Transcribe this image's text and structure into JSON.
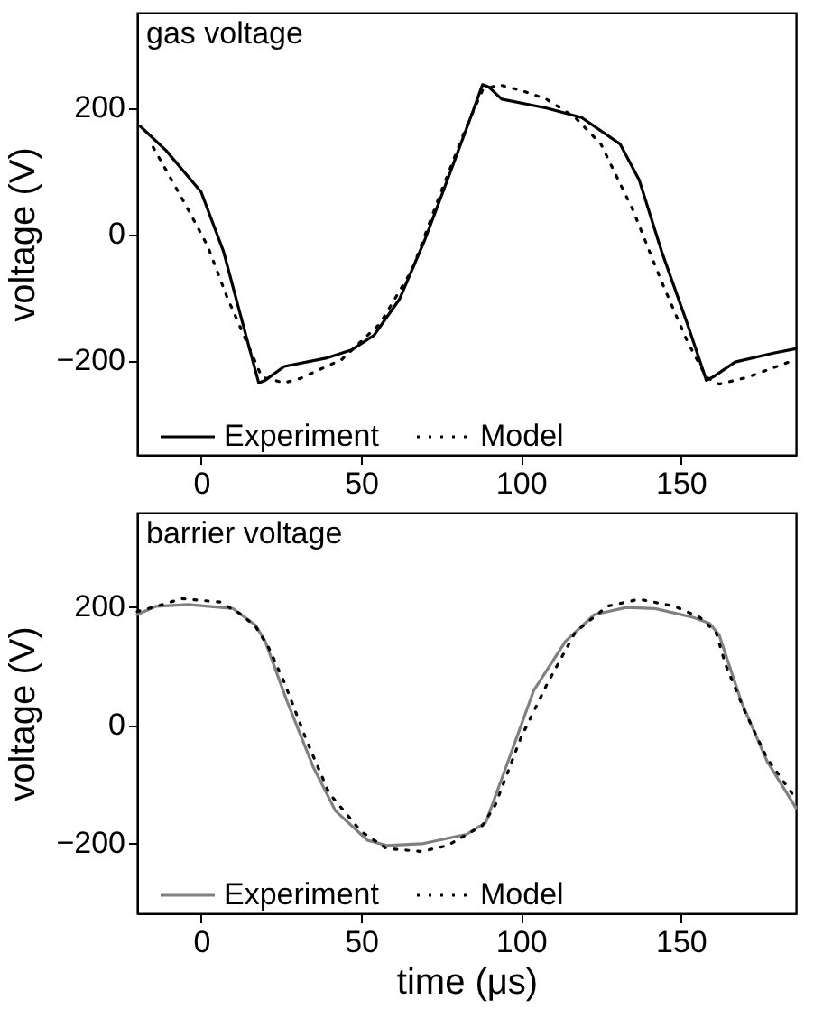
{
  "chart_data": [
    {
      "type": "line",
      "title": "gas voltage",
      "ylabel": "voltage (V)",
      "xlim": [
        -20,
        186
      ],
      "xticks": [
        0,
        50,
        100,
        150
      ],
      "ylim": [
        -350,
        350
      ],
      "yticks": [
        -200,
        0,
        200
      ],
      "grid": false,
      "legend": "bottom",
      "series": [
        {
          "name": "Experiment",
          "color": "#000000",
          "line_style": "solid",
          "x": [
            -19,
            -11,
            0,
            7,
            12,
            18,
            20,
            26,
            39,
            47,
            54,
            62,
            70,
            77,
            85,
            88,
            90,
            94,
            108,
            119,
            131,
            137,
            144,
            152,
            158,
            160,
            167,
            179,
            186
          ],
          "values": [
            170,
            132,
            66,
            -28,
            -123,
            -236,
            -232,
            -210,
            -197,
            -184,
            -161,
            -104,
            -9,
            85,
            194,
            236,
            232,
            213,
            199,
            184,
            142,
            85,
            -28,
            -142,
            -232,
            -227,
            -203,
            -189,
            -182
          ]
        },
        {
          "name": "Model",
          "color": "#000000",
          "line_style": "dotted",
          "x": [
            -15,
            -5,
            2,
            8,
            15,
            19,
            26,
            31,
            44,
            56,
            66,
            75,
            83,
            88,
            93,
            100,
            108,
            117,
            125,
            135,
            144,
            152,
            158,
            162,
            171,
            186
          ],
          "values": [
            137,
            47,
            -19,
            -99,
            -180,
            -227,
            -236,
            -229,
            -199,
            -142,
            -57,
            66,
            170,
            227,
            236,
            227,
            213,
            184,
            142,
            38,
            -76,
            -170,
            -227,
            -238,
            -227,
            -199
          ]
        }
      ]
    },
    {
      "type": "line",
      "title": "barrier voltage",
      "xlabel": "time (μs)",
      "ylabel": "voltage (V)",
      "xlim": [
        -20,
        186
      ],
      "xticks": [
        0,
        50,
        100,
        150
      ],
      "ylim": [
        -320,
        360
      ],
      "yticks": [
        -200,
        0,
        200
      ],
      "grid": false,
      "legend": "bottom",
      "series": [
        {
          "name": "Experiment",
          "color": "#808080",
          "line_style": "solid",
          "x": [
            -20,
            -14,
            -4,
            10,
            17,
            20,
            27,
            35,
            42,
            52,
            58,
            69,
            83,
            89,
            96,
            104,
            114,
            123,
            133,
            142,
            154,
            159,
            162,
            169,
            177,
            186
          ],
          "values": [
            187,
            201,
            204,
            197,
            169,
            142,
            38,
            -71,
            -146,
            -196,
            -205,
            -202,
            -186,
            -166,
            -62,
            58,
            142,
            187,
            199,
            197,
            182,
            172,
            152,
            38,
            -62,
            -141
          ]
        },
        {
          "name": "Model",
          "color": "#000000",
          "line_style": "dotted",
          "x": [
            -20,
            -14,
            -6,
            6,
            12,
            17,
            21,
            26,
            33,
            40,
            50,
            58,
            69,
            77,
            88,
            92,
            100,
            108,
            117,
            127,
            137,
            148,
            156,
            161,
            164,
            170,
            177,
            186
          ],
          "values": [
            192,
            201,
            214,
            208,
            189,
            167,
            132,
            72,
            -27,
            -116,
            -181,
            -210,
            -215,
            -205,
            -171,
            -136,
            -22,
            67,
            157,
            201,
            213,
            201,
            182,
            157,
            102,
            23,
            -57,
            -126
          ]
        }
      ]
    }
  ]
}
